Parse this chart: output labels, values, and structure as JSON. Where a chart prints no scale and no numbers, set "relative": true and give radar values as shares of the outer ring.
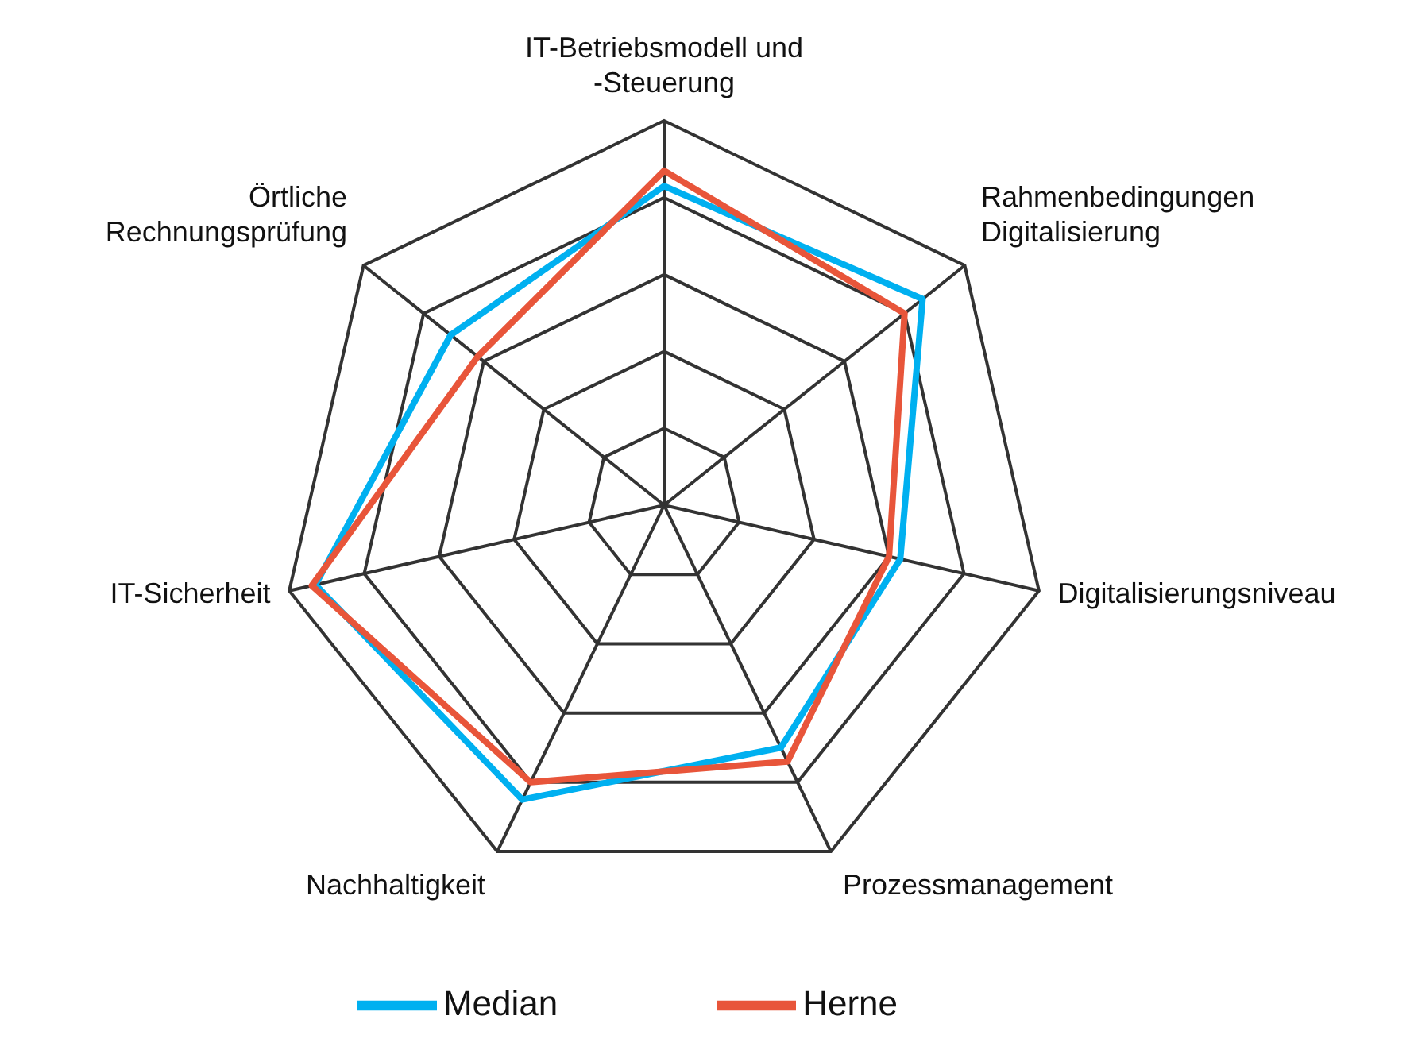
{
  "chart_data": {
    "type": "radar",
    "relative": true,
    "grid": true,
    "legend": "bottom",
    "marker": "none",
    "line_style": "solid",
    "categories": [
      "IT-Betriebsmodell und -Steuerung",
      "Rahmenbedingungen Digitalisierung",
      "Digitalisierungsniveau",
      "Prozessmanagement",
      "Nachhaltigkeit",
      "IT-Sicherheit",
      "Örtliche Rechnungsprüfung"
    ],
    "series": [
      {
        "name": "Median",
        "color": "#00b0f0",
        "values": [
          0.83,
          0.86,
          0.63,
          0.7,
          0.85,
          0.93,
          0.71
        ]
      },
      {
        "name": "Herne",
        "color": "#e8553a",
        "values": [
          0.87,
          0.8,
          0.6,
          0.74,
          0.8,
          0.94,
          0.62
        ]
      }
    ]
  }
}
